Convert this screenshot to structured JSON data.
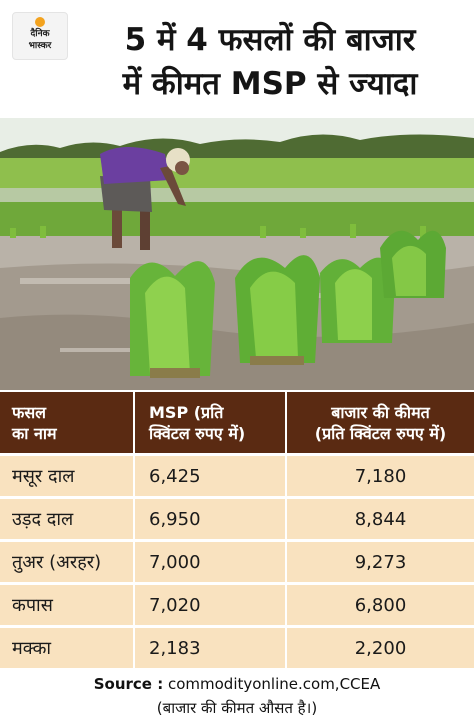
{
  "logo": {
    "line1": "दैनिक",
    "line2": "भास्कर"
  },
  "headline": {
    "line1": "5 में 4 फसलों की बाजार",
    "line2": "में कीमत MSP से ज्यादा"
  },
  "table": {
    "headers": {
      "crop": [
        "फसल",
        "का नाम"
      ],
      "msp": [
        "MSP (प्रति",
        "क्विंटल रुपए में)"
      ],
      "market": [
        "बाजार की कीमत",
        "(प्रति क्विंटल रुपए में)"
      ]
    },
    "rows": [
      {
        "crop": "मसूर दाल",
        "msp": "6,425",
        "market": "7,180"
      },
      {
        "crop": "उड़द दाल",
        "msp": "6,950",
        "market": "8,844"
      },
      {
        "crop": "तुअर (अरहर)",
        "msp": "7,000",
        "market": "9,273"
      },
      {
        "crop": "कपास",
        "msp": "7,020",
        "market": "6,800"
      },
      {
        "crop": "मक्का",
        "msp": "2,183",
        "market": "2,200"
      }
    ]
  },
  "footer": {
    "source_label": "Source :",
    "source_value": " commodityonline.com,CCEA",
    "note": "(बाजार की कीमत औसत है।)"
  },
  "colors": {
    "header_bg": "#5a2a12",
    "row_bg": "#f9e2bf",
    "logo_sun": "#f3a31f"
  }
}
